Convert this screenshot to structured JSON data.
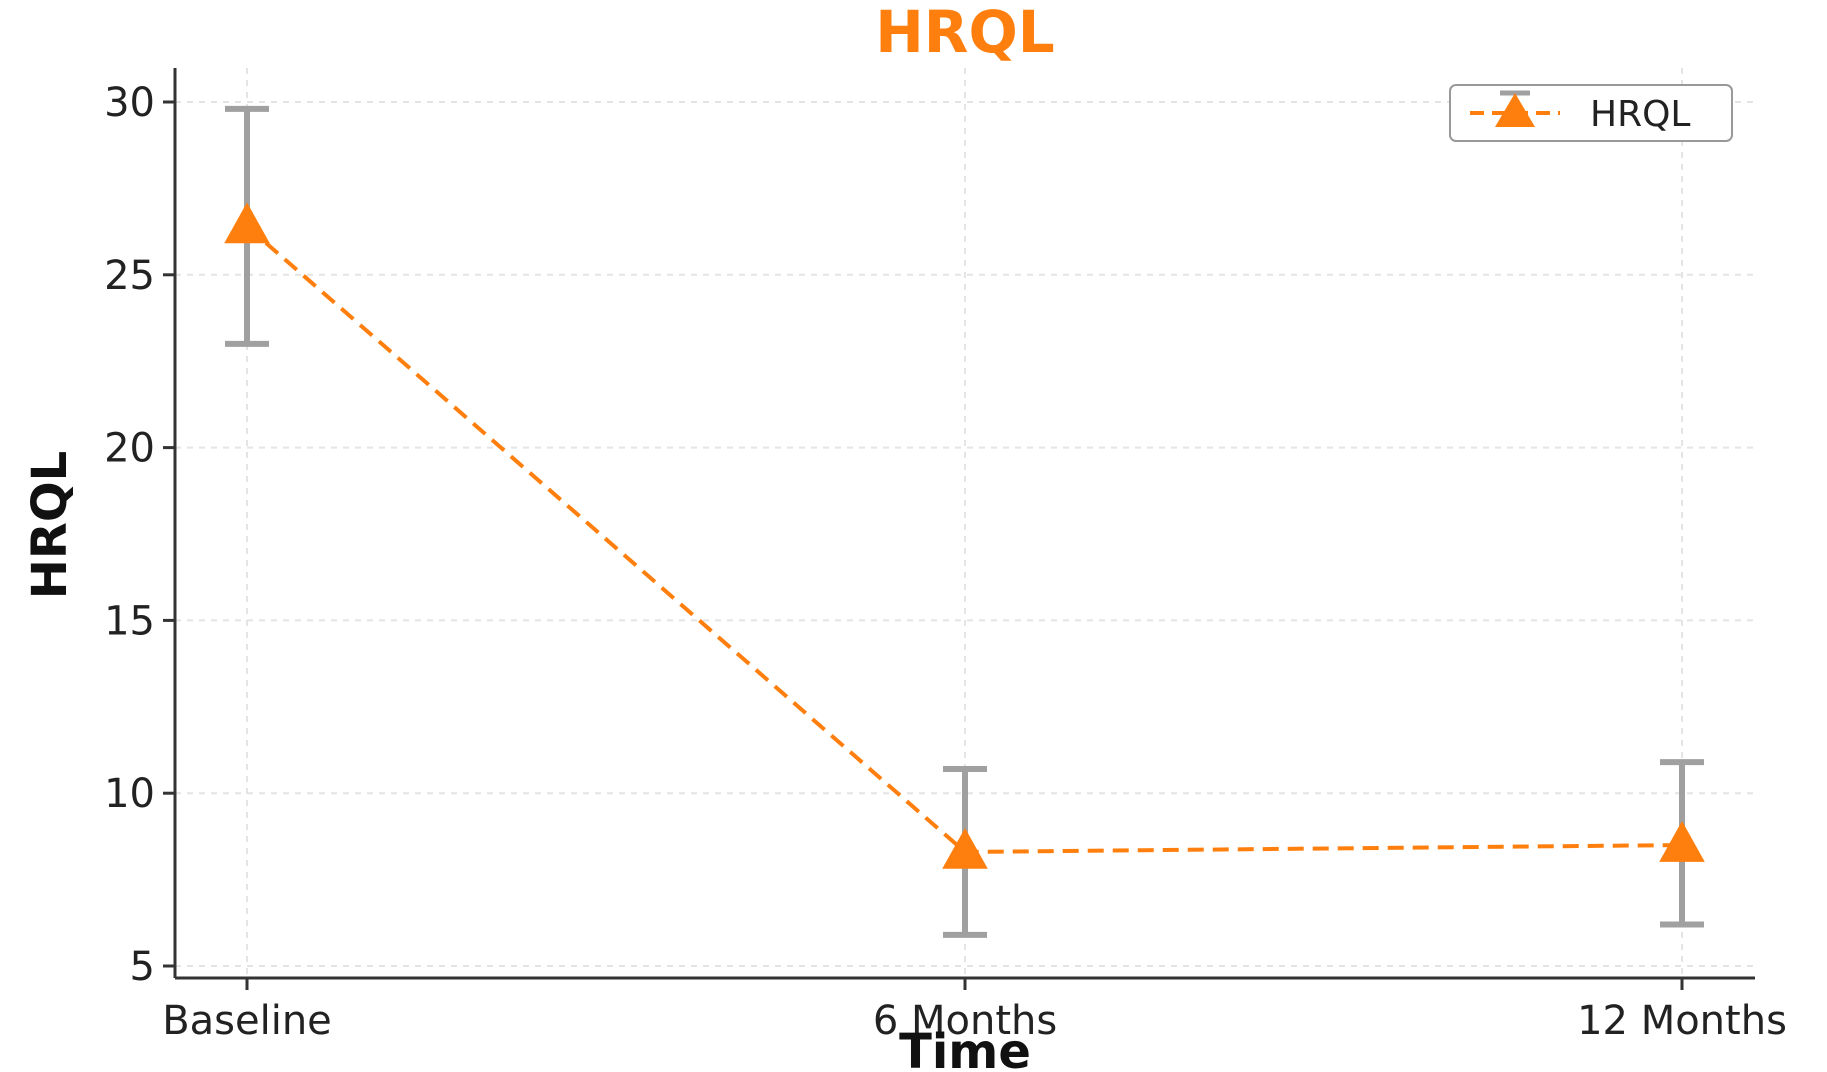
{
  "chart_data": {
    "type": "line",
    "title": "HRQL",
    "xlabel": "Time",
    "ylabel": "HRQL",
    "categories": [
      "Baseline",
      "6 Months",
      "12 Months"
    ],
    "series": [
      {
        "name": "HRQL",
        "values": [
          26.4,
          8.3,
          8.5
        ],
        "error_low": [
          23.0,
          5.9,
          6.2
        ],
        "error_high": [
          29.8,
          10.7,
          10.9
        ],
        "color": "#ff7f0e",
        "line_style": "dashed",
        "marker": "triangle-up"
      }
    ],
    "ylim": [
      5,
      30
    ],
    "yticks": [
      "5",
      "10",
      "15",
      "20",
      "25",
      "30"
    ],
    "grid": true,
    "legend_position": "top-right",
    "colors": {
      "accent": "#ff7f0e",
      "error_bar": "#a0a0a0",
      "axis": "#333333",
      "grid": "#e4e4e4"
    }
  }
}
